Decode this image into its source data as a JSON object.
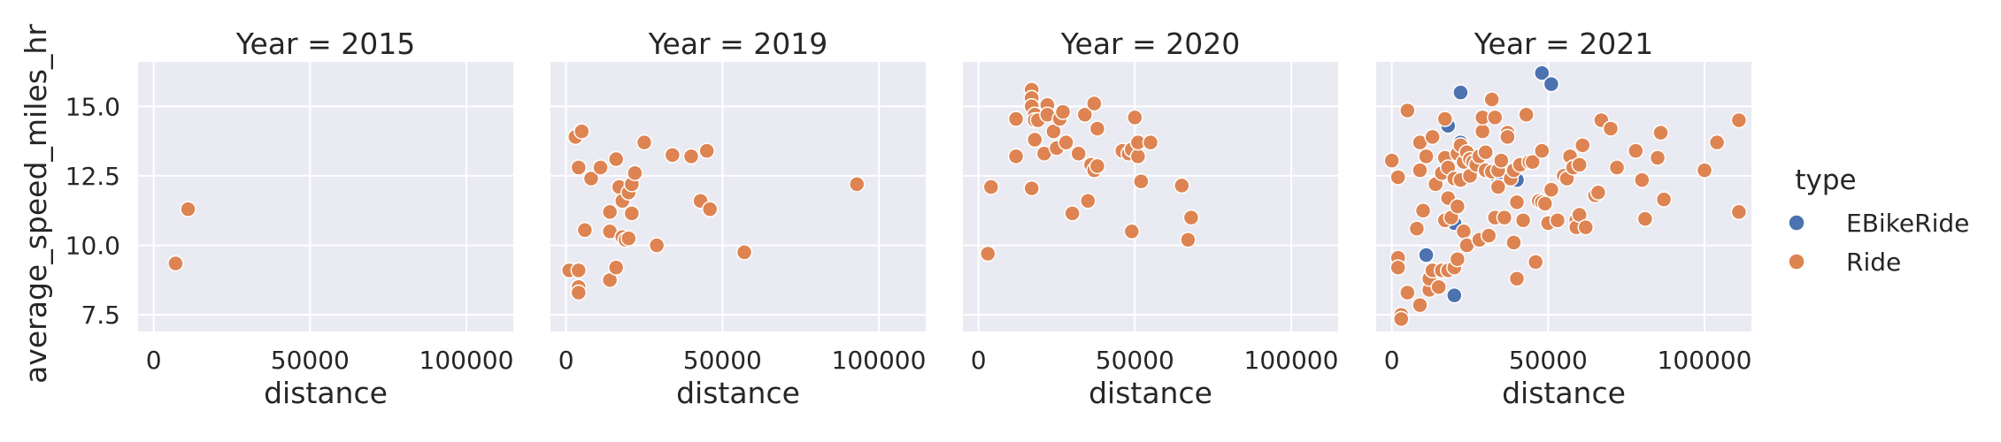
{
  "chart_data": {
    "type": "scatter",
    "x_label": "distance",
    "y_label": "average_speed_miles_hr",
    "xlim": [
      -5000,
      115000
    ],
    "ylim": [
      6.9,
      16.6
    ],
    "x_ticks": [
      0,
      50000,
      100000
    ],
    "x_tick_labels": [
      "0",
      "50000",
      "100000"
    ],
    "y_ticks": [
      7.5,
      10.0,
      12.5,
      15.0
    ],
    "y_tick_labels": [
      "7.5",
      "10.0",
      "12.5",
      "15.0"
    ],
    "grid": true,
    "background": "#eaeaf2",
    "legend": {
      "title": "type",
      "placement": "right",
      "entries": [
        {
          "label": "EBikeRide",
          "color": "#4c72b0"
        },
        {
          "label": "Ride",
          "color": "#dd8452"
        }
      ]
    },
    "facets": [
      {
        "title": "Year = 2015",
        "series": [
          {
            "name": "Ride",
            "points": [
              [
                7000,
                9.35
              ],
              [
                11000,
                11.3
              ]
            ]
          }
        ]
      },
      {
        "title": "Year = 2019",
        "series": [
          {
            "name": "Ride",
            "points": [
              [
                1000,
                9.1
              ],
              [
                3000,
                13.9
              ],
              [
                4000,
                9.1
              ],
              [
                4000,
                8.5
              ],
              [
                4000,
                8.3
              ],
              [
                4000,
                12.8
              ],
              [
                5000,
                14.1
              ],
              [
                6000,
                10.55
              ],
              [
                8000,
                12.4
              ],
              [
                11000,
                12.8
              ],
              [
                14000,
                11.2
              ],
              [
                14000,
                10.5
              ],
              [
                14000,
                8.75
              ],
              [
                16000,
                9.2
              ],
              [
                16000,
                13.1
              ],
              [
                17000,
                12.1
              ],
              [
                18000,
                10.3
              ],
              [
                18000,
                11.6
              ],
              [
                19000,
                10.2
              ],
              [
                20000,
                10.25
              ],
              [
                20000,
                11.9
              ],
              [
                21000,
                12.2
              ],
              [
                21000,
                11.15
              ],
              [
                22000,
                12.6
              ],
              [
                25000,
                13.7
              ],
              [
                29000,
                10.0
              ],
              [
                34000,
                13.25
              ],
              [
                40000,
                13.2
              ],
              [
                43000,
                11.6
              ],
              [
                45000,
                13.4
              ],
              [
                46000,
                11.3
              ],
              [
                57000,
                9.75
              ],
              [
                93000,
                12.2
              ]
            ]
          }
        ]
      },
      {
        "title": "Year = 2020",
        "series": [
          {
            "name": "Ride",
            "points": [
              [
                3000,
                9.7
              ],
              [
                4000,
                12.1
              ],
              [
                12000,
                14.55
              ],
              [
                12000,
                13.2
              ],
              [
                17000,
                12.05
              ],
              [
                17000,
                15.6
              ],
              [
                17000,
                15.3
              ],
              [
                17000,
                15.0
              ],
              [
                18000,
                14.7
              ],
              [
                18000,
                14.5
              ],
              [
                18000,
                13.8
              ],
              [
                19000,
                14.5
              ],
              [
                21000,
                13.3
              ],
              [
                22000,
                15.05
              ],
              [
                22000,
                14.7
              ],
              [
                24000,
                14.1
              ],
              [
                25000,
                13.5
              ],
              [
                26000,
                14.55
              ],
              [
                27000,
                14.8
              ],
              [
                28000,
                13.7
              ],
              [
                30000,
                11.15
              ],
              [
                32000,
                13.3
              ],
              [
                34000,
                14.7
              ],
              [
                35000,
                11.6
              ],
              [
                36000,
                12.9
              ],
              [
                37000,
                12.7
              ],
              [
                37000,
                15.1
              ],
              [
                38000,
                12.85
              ],
              [
                38000,
                14.2
              ],
              [
                46000,
                13.4
              ],
              [
                48000,
                13.3
              ],
              [
                49000,
                13.45
              ],
              [
                49000,
                10.5
              ],
              [
                50000,
                14.6
              ],
              [
                51000,
                13.2
              ],
              [
                51000,
                13.7
              ],
              [
                52000,
                12.3
              ],
              [
                55000,
                13.7
              ],
              [
                65000,
                12.15
              ],
              [
                67000,
                10.2
              ],
              [
                68000,
                11.0
              ]
            ]
          }
        ]
      },
      {
        "title": "Year = 2021",
        "series": [
          {
            "name": "EBikeRide",
            "points": [
              [
                11000,
                9.65
              ],
              [
                16000,
                12.55
              ],
              [
                18000,
                14.3
              ],
              [
                20000,
                10.8
              ],
              [
                20000,
                8.2
              ],
              [
                22000,
                13.7
              ],
              [
                22000,
                15.5
              ],
              [
                33000,
                12.55
              ],
              [
                34000,
                12.6
              ],
              [
                38000,
                12.45
              ],
              [
                40000,
                12.35
              ],
              [
                48000,
                16.2
              ],
              [
                51000,
                15.8
              ]
            ]
          },
          {
            "name": "Ride",
            "points": [
              [
                0,
                13.05
              ],
              [
                2000,
                12.45
              ],
              [
                2000,
                9.55
              ],
              [
                2000,
                9.2
              ],
              [
                3000,
                7.5
              ],
              [
                3000,
                7.35
              ],
              [
                5000,
                14.85
              ],
              [
                5000,
                8.3
              ],
              [
                8000,
                10.6
              ],
              [
                9000,
                12.7
              ],
              [
                9000,
                13.7
              ],
              [
                9000,
                7.85
              ],
              [
                10000,
                11.25
              ],
              [
                11000,
                13.2
              ],
              [
                12000,
                8.4
              ],
              [
                12000,
                8.8
              ],
              [
                13000,
                9.1
              ],
              [
                13000,
                13.9
              ],
              [
                14000,
                12.2
              ],
              [
                15000,
                8.5
              ],
              [
                16000,
                9.1
              ],
              [
                16000,
                12.6
              ],
              [
                17000,
                10.9
              ],
              [
                17000,
                13.15
              ],
              [
                17000,
                14.55
              ],
              [
                18000,
                12.8
              ],
              [
                18000,
                11.7
              ],
              [
                18000,
                9.1
              ],
              [
                19000,
                11.0
              ],
              [
                20000,
                9.2
              ],
              [
                20000,
                12.4
              ],
              [
                21000,
                13.3
              ],
              [
                21000,
                11.4
              ],
              [
                21000,
                9.5
              ],
              [
                22000,
                13.6
              ],
              [
                22000,
                12.35
              ],
              [
                23000,
                10.5
              ],
              [
                23000,
                13.0
              ],
              [
                24000,
                13.35
              ],
              [
                24000,
                10.0
              ],
              [
                25000,
                12.5
              ],
              [
                25000,
                13.1
              ],
              [
                26000,
                13.0
              ],
              [
                27000,
                12.9
              ],
              [
                28000,
                13.2
              ],
              [
                28000,
                10.2
              ],
              [
                29000,
                14.1
              ],
              [
                29000,
                14.6
              ],
              [
                30000,
                13.35
              ],
              [
                30000,
                12.7
              ],
              [
                31000,
                10.35
              ],
              [
                32000,
                15.25
              ],
              [
                32000,
                12.65
              ],
              [
                33000,
                11.0
              ],
              [
                33000,
                14.6
              ],
              [
                34000,
                12.1
              ],
              [
                34000,
                12.7
              ],
              [
                35000,
                13.05
              ],
              [
                36000,
                11.0
              ],
              [
                37000,
                14.05
              ],
              [
                37000,
                13.9
              ],
              [
                38000,
                12.4
              ],
              [
                39000,
                12.7
              ],
              [
                39000,
                10.1
              ],
              [
                40000,
                11.55
              ],
              [
                40000,
                8.8
              ],
              [
                41000,
                12.9
              ],
              [
                42000,
                10.9
              ],
              [
                43000,
                14.7
              ],
              [
                44000,
                13.0
              ],
              [
                45000,
                13.0
              ],
              [
                46000,
                9.4
              ],
              [
                47000,
                11.6
              ],
              [
                48000,
                11.55
              ],
              [
                48000,
                13.4
              ],
              [
                49000,
                11.5
              ],
              [
                50000,
                10.8
              ],
              [
                51000,
                12.0
              ],
              [
                53000,
                10.9
              ],
              [
                55000,
                12.5
              ],
              [
                56000,
                12.4
              ],
              [
                57000,
                13.2
              ],
              [
                58000,
                12.8
              ],
              [
                59000,
                10.9
              ],
              [
                59000,
                10.65
              ],
              [
                60000,
                12.9
              ],
              [
                60000,
                11.1
              ],
              [
                61000,
                13.6
              ],
              [
                62000,
                10.65
              ],
              [
                65000,
                11.8
              ],
              [
                66000,
                11.9
              ],
              [
                67000,
                14.5
              ],
              [
                70000,
                14.2
              ],
              [
                72000,
                12.8
              ],
              [
                78000,
                13.4
              ],
              [
                80000,
                12.35
              ],
              [
                81000,
                10.95
              ],
              [
                85000,
                13.15
              ],
              [
                86000,
                14.05
              ],
              [
                87000,
                11.65
              ],
              [
                100000,
                12.7
              ],
              [
                104000,
                13.7
              ],
              [
                111000,
                14.5
              ],
              [
                111000,
                11.2
              ]
            ]
          }
        ]
      }
    ]
  }
}
